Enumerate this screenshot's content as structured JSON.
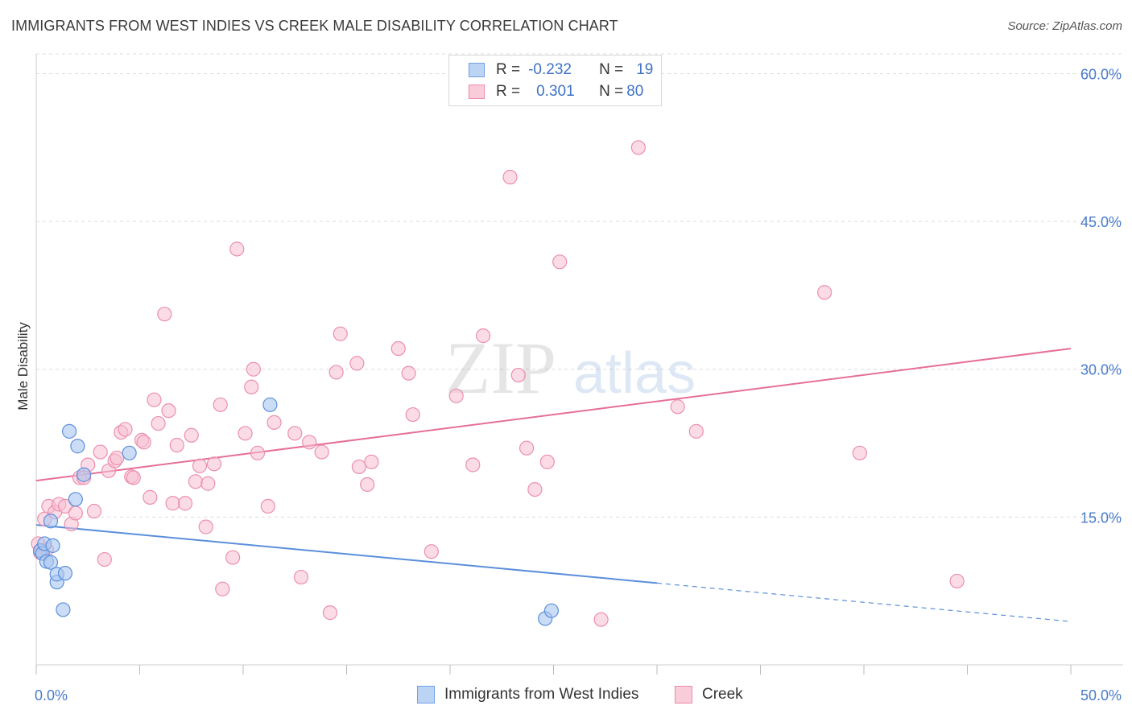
{
  "title": "IMMIGRANTS FROM WEST INDIES VS CREEK MALE DISABILITY CORRELATION CHART",
  "source": "Source: ZipAtlas.com",
  "watermark": {
    "zip": "ZIP",
    "atlas": "atlas"
  },
  "legend": {
    "r_label": "R =",
    "n_label": "N =",
    "rows": [
      {
        "name": "Immigrants from West Indies",
        "r": "-0.232",
        "n": "19",
        "color": "#6fa0e6",
        "fill": "#bcd4f4"
      },
      {
        "name": "Creek",
        "r": "0.301",
        "n": "80",
        "color": "#ee89aa",
        "fill": "#f9ccd9"
      }
    ]
  },
  "chart_data": {
    "type": "scatter",
    "title": "IMMIGRANTS FROM WEST INDIES VS CREEK MALE DISABILITY CORRELATION CHART",
    "xlabel": "",
    "ylabel": "Male Disability",
    "xlim": [
      0,
      50
    ],
    "ylim": [
      0,
      62
    ],
    "x_tick_labels": [
      "0.0%",
      "50.0%"
    ],
    "y_ticks": [
      15,
      30,
      45,
      60
    ],
    "y_tick_labels": [
      "15.0%",
      "30.0%",
      "45.0%",
      "60.0%"
    ],
    "grid": true,
    "legend_position": "top-center",
    "series": [
      {
        "name": "Immigrants from West Indies",
        "color": "#5b8fdc",
        "points": [
          [
            0.2,
            11.6
          ],
          [
            0.3,
            11.3
          ],
          [
            0.4,
            12.3
          ],
          [
            0.5,
            10.5
          ],
          [
            0.7,
            10.4
          ],
          [
            0.7,
            14.6
          ],
          [
            0.8,
            12.1
          ],
          [
            1.0,
            8.4
          ],
          [
            1.0,
            9.2
          ],
          [
            1.3,
            5.6
          ],
          [
            1.4,
            9.3
          ],
          [
            1.6,
            23.7
          ],
          [
            1.9,
            16.8
          ],
          [
            2.0,
            22.2
          ],
          [
            2.3,
            19.3
          ],
          [
            4.5,
            21.5
          ],
          [
            11.3,
            26.4
          ],
          [
            24.6,
            4.7
          ],
          [
            24.9,
            5.5
          ]
        ],
        "trend": {
          "x0": 0,
          "y0": 14.2,
          "x1": 30,
          "y1": 8.3,
          "dashed_to_x": 50,
          "dashed_to_y": 4.4
        }
      },
      {
        "name": "Creek",
        "color": "#e66f97",
        "points": [
          [
            0.1,
            12.3
          ],
          [
            0.2,
            11.4
          ],
          [
            0.4,
            14.8
          ],
          [
            0.5,
            11.7
          ],
          [
            0.6,
            16.1
          ],
          [
            0.9,
            15.5
          ],
          [
            1.1,
            16.3
          ],
          [
            1.4,
            16.1
          ],
          [
            1.7,
            14.3
          ],
          [
            1.9,
            15.4
          ],
          [
            2.1,
            19.0
          ],
          [
            2.3,
            19.0
          ],
          [
            2.5,
            20.3
          ],
          [
            2.8,
            15.6
          ],
          [
            3.1,
            21.6
          ],
          [
            3.3,
            10.7
          ],
          [
            3.5,
            19.7
          ],
          [
            3.8,
            20.7
          ],
          [
            3.9,
            21.0
          ],
          [
            4.1,
            23.6
          ],
          [
            4.3,
            23.9
          ],
          [
            4.6,
            19.1
          ],
          [
            4.7,
            19.0
          ],
          [
            5.1,
            22.8
          ],
          [
            5.2,
            22.6
          ],
          [
            5.5,
            17.0
          ],
          [
            5.7,
            26.9
          ],
          [
            5.9,
            24.5
          ],
          [
            6.2,
            35.6
          ],
          [
            6.4,
            25.8
          ],
          [
            6.6,
            16.4
          ],
          [
            6.8,
            22.3
          ],
          [
            7.2,
            16.4
          ],
          [
            7.5,
            23.3
          ],
          [
            7.7,
            18.6
          ],
          [
            7.9,
            20.2
          ],
          [
            8.2,
            14.0
          ],
          [
            8.3,
            18.4
          ],
          [
            8.6,
            20.4
          ],
          [
            8.9,
            26.4
          ],
          [
            9.0,
            7.7
          ],
          [
            9.5,
            10.9
          ],
          [
            9.7,
            42.2
          ],
          [
            10.1,
            23.5
          ],
          [
            10.4,
            28.2
          ],
          [
            10.5,
            30.0
          ],
          [
            10.7,
            21.5
          ],
          [
            11.2,
            16.1
          ],
          [
            11.5,
            24.6
          ],
          [
            12.5,
            23.5
          ],
          [
            12.8,
            8.9
          ],
          [
            13.2,
            22.6
          ],
          [
            13.8,
            21.6
          ],
          [
            14.2,
            5.3
          ],
          [
            14.5,
            29.7
          ],
          [
            14.7,
            33.6
          ],
          [
            15.5,
            30.6
          ],
          [
            15.6,
            20.1
          ],
          [
            16.0,
            18.3
          ],
          [
            16.2,
            20.6
          ],
          [
            17.5,
            32.1
          ],
          [
            18.0,
            29.6
          ],
          [
            18.2,
            25.4
          ],
          [
            19.1,
            11.5
          ],
          [
            20.3,
            27.3
          ],
          [
            21.1,
            20.3
          ],
          [
            21.6,
            33.4
          ],
          [
            22.9,
            49.5
          ],
          [
            23.3,
            29.4
          ],
          [
            23.7,
            22.0
          ],
          [
            24.1,
            17.8
          ],
          [
            24.7,
            20.6
          ],
          [
            25.3,
            40.9
          ],
          [
            27.3,
            4.6
          ],
          [
            29.1,
            52.5
          ],
          [
            31.0,
            26.2
          ],
          [
            31.9,
            23.7
          ],
          [
            38.1,
            37.8
          ],
          [
            39.8,
            21.5
          ],
          [
            44.5,
            8.5
          ]
        ],
        "trend": {
          "x0": 0,
          "y0": 18.7,
          "x1": 50,
          "y1": 32.1
        }
      }
    ]
  }
}
